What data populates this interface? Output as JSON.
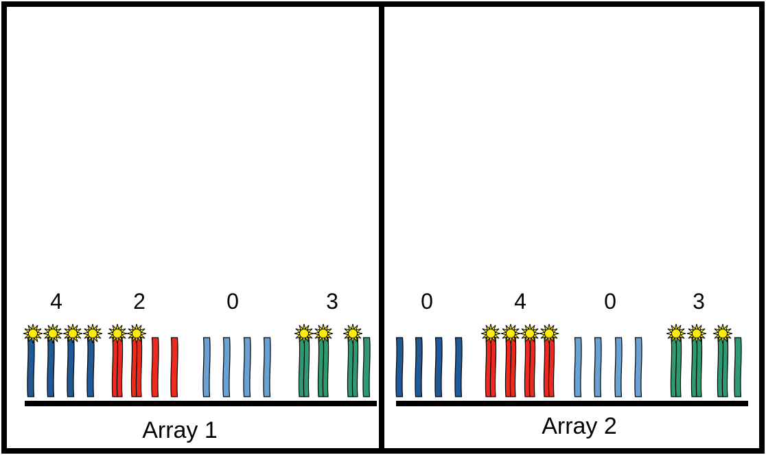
{
  "colors": {
    "dark_blue": "#1f5a96",
    "red": "#ee2a1e",
    "light_blue": "#6aa0d4",
    "green": "#2f9a72",
    "star_fill": "#ffee00",
    "border": "#000000"
  },
  "panels": [
    {
      "label": "Array 1",
      "groups": [
        {
          "color": "dark_blue",
          "count_label": "4",
          "lit": 4,
          "total": 4
        },
        {
          "color": "red",
          "count_label": "2",
          "lit": 2,
          "total": 4
        },
        {
          "color": "light_blue",
          "count_label": "0",
          "lit": 0,
          "total": 4
        },
        {
          "color": "green",
          "count_label": "3",
          "lit": 3,
          "total": 4
        }
      ]
    },
    {
      "label": "Array 2",
      "groups": [
        {
          "color": "dark_blue",
          "count_label": "0",
          "lit": 0,
          "total": 4
        },
        {
          "color": "red",
          "count_label": "4",
          "lit": 4,
          "total": 4
        },
        {
          "color": "light_blue",
          "count_label": "0",
          "lit": 0,
          "total": 4
        },
        {
          "color": "green",
          "count_label": "3",
          "lit": 3,
          "total": 4
        }
      ]
    }
  ]
}
